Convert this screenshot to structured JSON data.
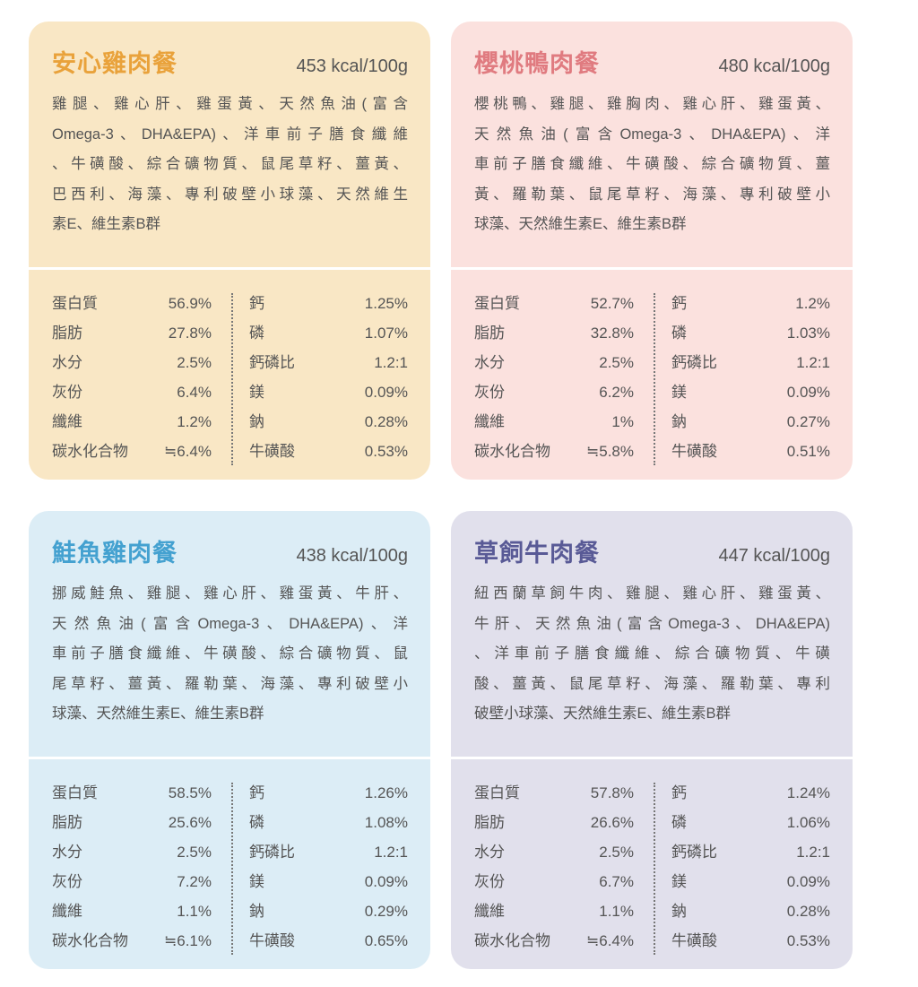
{
  "cards": [
    {
      "title": "安心雞肉餐",
      "energy": "453 kcal/100g",
      "ingredients": [
        "雞腿、雞心肝、雞蛋黃、天然魚油(富含",
        "Omega-3、DHA&EPA)、洋車前子膳食纖維",
        "、牛磺酸、綜合礦物質、鼠尾草籽、薑黃、",
        "巴西利、海藻、專利破壁小球藻、天然維生",
        "素E、維生素B群"
      ],
      "nutrients": [
        [
          "蛋白質",
          "56.9%",
          "鈣",
          "1.25%"
        ],
        [
          "脂肪",
          "27.8%",
          "磷",
          "1.07%"
        ],
        [
          "水分",
          "2.5%",
          "鈣磷比",
          "1.2:1"
        ],
        [
          "灰份",
          "6.4%",
          "鎂",
          "0.09%"
        ],
        [
          "纖維",
          "1.2%",
          "鈉",
          "0.28%"
        ],
        [
          "碳水化合物",
          "≒6.4%",
          "牛磺酸",
          "0.53%"
        ]
      ]
    },
    {
      "title": "櫻桃鴨肉餐",
      "energy": "480 kcal/100g",
      "ingredients": [
        "櫻桃鴨、雞腿、雞胸肉、雞心肝、雞蛋黃、",
        "天然魚油(富含Omega-3、DHA&EPA)、洋",
        "車前子膳食纖維、牛磺酸、綜合礦物質、薑",
        "黃、羅勒葉、鼠尾草籽、海藻、專利破壁小",
        "球藻、天然維生素E、維生素B群"
      ],
      "nutrients": [
        [
          "蛋白質",
          "52.7%",
          "鈣",
          "1.2%"
        ],
        [
          "脂肪",
          "32.8%",
          "磷",
          "1.03%"
        ],
        [
          "水分",
          "2.5%",
          "鈣磷比",
          "1.2:1"
        ],
        [
          "灰份",
          "6.2%",
          "鎂",
          "0.09%"
        ],
        [
          "纖維",
          "1%",
          "鈉",
          "0.27%"
        ],
        [
          "碳水化合物",
          "≒5.8%",
          "牛磺酸",
          "0.51%"
        ]
      ]
    },
    {
      "title": "鮭魚雞肉餐",
      "energy": "438 kcal/100g",
      "ingredients": [
        "挪威鮭魚、雞腿、雞心肝、雞蛋黃、牛肝、",
        "天然魚油(富含Omega-3、DHA&EPA)、洋",
        "車前子膳食纖維、牛磺酸、綜合礦物質、鼠",
        "尾草籽、薑黃、羅勒葉、海藻、專利破壁小",
        "球藻、天然維生素E、維生素B群"
      ],
      "nutrients": [
        [
          "蛋白質",
          "58.5%",
          "鈣",
          "1.26%"
        ],
        [
          "脂肪",
          "25.6%",
          "磷",
          "1.08%"
        ],
        [
          "水分",
          "2.5%",
          "鈣磷比",
          "1.2:1"
        ],
        [
          "灰份",
          "7.2%",
          "鎂",
          "0.09%"
        ],
        [
          "纖維",
          "1.1%",
          "鈉",
          "0.29%"
        ],
        [
          "碳水化合物",
          "≒6.1%",
          "牛磺酸",
          "0.65%"
        ]
      ]
    },
    {
      "title": "草飼牛肉餐",
      "energy": "447 kcal/100g",
      "ingredients": [
        "紐西蘭草飼牛肉、雞腿、雞心肝、雞蛋黃、",
        "牛肝、天然魚油(富含Omega-3、DHA&EPA)",
        "、洋車前子膳食纖維、綜合礦物質、牛磺",
        "酸、薑黃、鼠尾草籽、海藻、羅勒葉、專利",
        "破壁小球藻、天然維生素E、維生素B群"
      ],
      "nutrients": [
        [
          "蛋白質",
          "57.8%",
          "鈣",
          "1.24%"
        ],
        [
          "脂肪",
          "26.6%",
          "磷",
          "1.06%"
        ],
        [
          "水分",
          "2.5%",
          "鈣磷比",
          "1.2:1"
        ],
        [
          "灰份",
          "6.7%",
          "鎂",
          "0.09%"
        ],
        [
          "纖維",
          "1.1%",
          "鈉",
          "0.28%"
        ],
        [
          "碳水化合物",
          "≒6.4%",
          "牛磺酸",
          "0.53%"
        ]
      ]
    }
  ]
}
